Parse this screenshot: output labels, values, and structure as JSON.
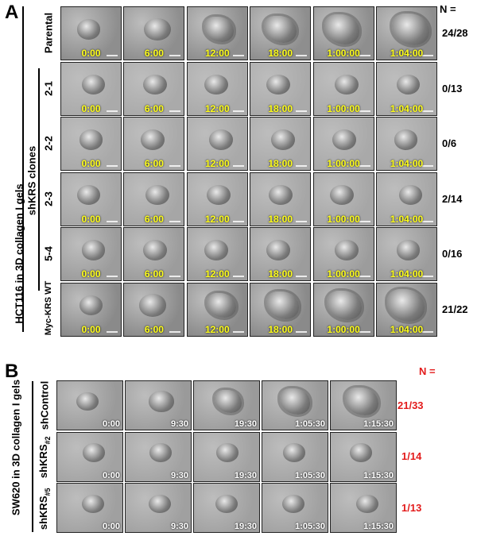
{
  "panel_a": {
    "letter": "A",
    "y_title": "HCT116 in 3D collagen I gels",
    "clone_group": "shKRS clones",
    "n_header": "N =",
    "timepoints": [
      "0:00",
      "6:00",
      "12:00",
      "18:00",
      "1:00:00",
      "1:04:00"
    ],
    "rows": [
      {
        "label": "Parental",
        "n": "24/28",
        "tone": "#8e8e8e",
        "invasive": true
      },
      {
        "label": "2-1",
        "n": "0/13",
        "tone": "#aaaaaa",
        "invasive": false
      },
      {
        "label": "2-2",
        "n": "0/6",
        "tone": "#a9a9a9",
        "invasive": false
      },
      {
        "label": "2-3",
        "n": "2/14",
        "tone": "#a6a6a6",
        "invasive": false
      },
      {
        "label": "5-4",
        "n": "0/16",
        "tone": "#9c9c9c",
        "invasive": false
      },
      {
        "label": "Myc-KRS WT",
        "n": "21/22",
        "tone": "#8a8a8a",
        "invasive": true
      }
    ]
  },
  "panel_b": {
    "letter": "B",
    "y_title": "SW620 in 3D collagen I gels",
    "n_header": "N =",
    "timepoints": [
      "0:00",
      "9:30",
      "19:30",
      "1:05:30",
      "1:15:30"
    ],
    "rows": [
      {
        "label": "shControl",
        "sub": "",
        "n": "21/33",
        "tone": "#9a9a9a"
      },
      {
        "label": "shKRS",
        "sub": "#2",
        "n": "1/14",
        "tone": "#a2a2a2"
      },
      {
        "label": "shKRS",
        "sub": "#5",
        "n": "1/13",
        "tone": "#a0a0a0"
      }
    ]
  }
}
